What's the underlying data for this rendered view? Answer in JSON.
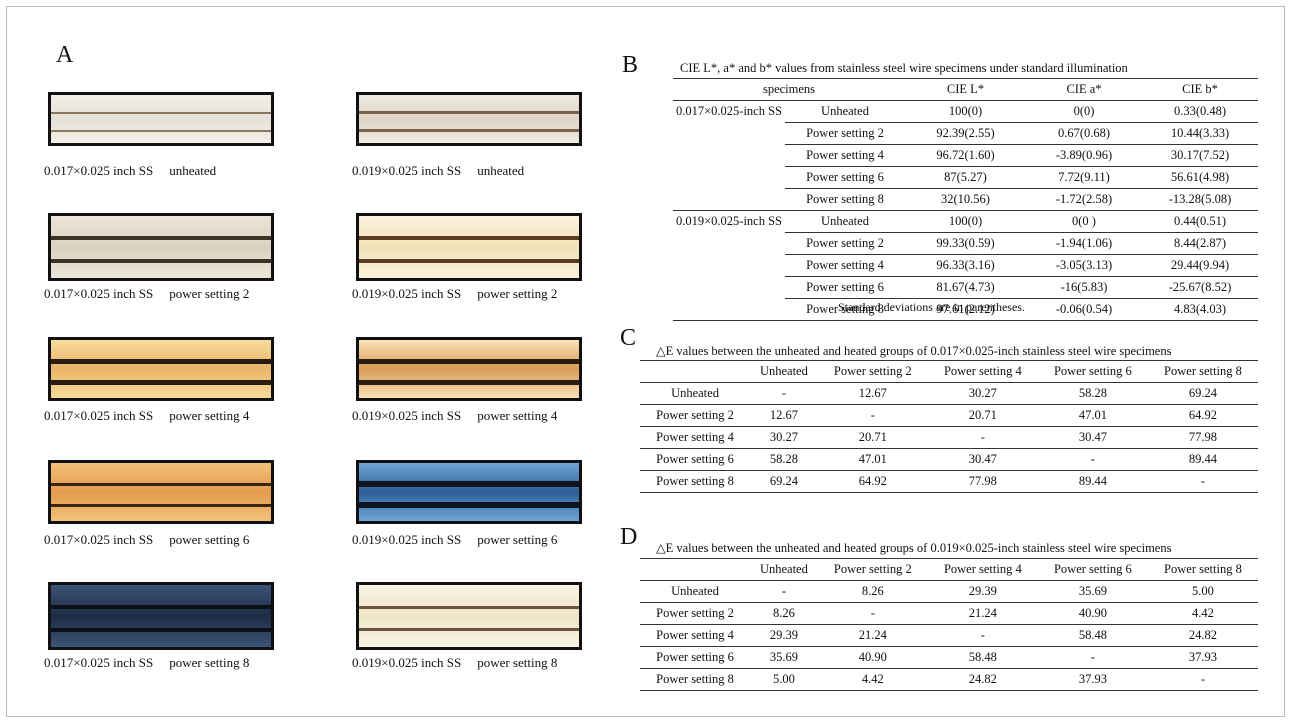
{
  "panel_a": {
    "label": "A",
    "images": [
      {
        "spec": "0.017×0.025 inch SS",
        "condition": "unheated"
      },
      {
        "spec": "0.019×0.025 inch SS",
        "condition": "unheated"
      },
      {
        "spec": "0.017×0.025 inch SS",
        "condition": "power setting 2"
      },
      {
        "spec": "0.019×0.025 inch SS",
        "condition": "power setting 2"
      },
      {
        "spec": "0.017×0.025 inch SS",
        "condition": "power setting 4"
      },
      {
        "spec": "0.019×0.025 inch SS",
        "condition": "power setting 4"
      },
      {
        "spec": "0.017×0.025 inch SS",
        "condition": "power setting 6"
      },
      {
        "spec": "0.019×0.025 inch SS",
        "condition": "power setting 6"
      },
      {
        "spec": "0.017×0.025 inch SS",
        "condition": "power setting 8"
      },
      {
        "spec": "0.019×0.025 inch SS",
        "condition": "power setting 8"
      }
    ]
  },
  "panel_b": {
    "label": "B",
    "title": "CIE L*, a* and b* values from stainless steel wire specimens under standard illumination",
    "header": [
      "specimens",
      "CIE L*",
      "CIE a*",
      "CIE b*"
    ],
    "groups": [
      {
        "name": "0.017×0.025-inch SS",
        "rows": [
          [
            "Unheated",
            "100(0)",
            "0(0)",
            "0.33(0.48)"
          ],
          [
            "Power setting 2",
            "92.39(2.55)",
            "0.67(0.68)",
            "10.44(3.33)"
          ],
          [
            "Power setting 4",
            "96.72(1.60)",
            "-3.89(0.96)",
            "30.17(7.52)"
          ],
          [
            "Power setting 6",
            "87(5.27)",
            "7.72(9.11)",
            "56.61(4.98)"
          ],
          [
            "Power setting 8",
            "32(10.56)",
            "-1.72(2.58)",
            "-13.28(5.08)"
          ]
        ]
      },
      {
        "name": "0.019×0.025-inch SS",
        "rows": [
          [
            "Unheated",
            "100(0)",
            "0(0 )",
            "0.44(0.51)"
          ],
          [
            "Power setting 2",
            "99.33(0.59)",
            "-1.94(1.06)",
            "8.44(2.87)"
          ],
          [
            "Power setting 4",
            "96.33(3.16)",
            "-3.05(3.13)",
            "29.44(9.94)"
          ],
          [
            "Power setting 6",
            "81.67(4.73)",
            "-16(5.83)",
            "-25.67(8.52)"
          ],
          [
            "Power setting 8",
            "97.61(2.12)",
            "-0.06(0.54)",
            "4.83(4.03)"
          ]
        ]
      }
    ],
    "note": "Standard deviations are in parentheses."
  },
  "panel_c": {
    "label": "C",
    "title": "△E values between the unheated and heated groups of 0.017×0.025-inch stainless steel wire specimens",
    "header": [
      "",
      "Unheated",
      "Power setting 2",
      "Power setting 4",
      "Power setting 6",
      "Power setting 8"
    ],
    "rows": [
      [
        "Unheated",
        "-",
        "12.67",
        "30.27",
        "58.28",
        "69.24"
      ],
      [
        "Power setting 2",
        "12.67",
        "-",
        "20.71",
        "47.01",
        "64.92"
      ],
      [
        "Power setting 4",
        "30.27",
        "20.71",
        "-",
        "30.47",
        "77.98"
      ],
      [
        "Power setting 6",
        "58.28",
        "47.01",
        "30.47",
        "-",
        "89.44"
      ],
      [
        "Power setting 8",
        "69.24",
        "64.92",
        "77.98",
        "89.44",
        "-"
      ]
    ]
  },
  "panel_d": {
    "label": "D",
    "title": "△E values between the unheated and heated groups of 0.019×0.025-inch stainless steel wire specimens",
    "header": [
      "",
      "Unheated",
      "Power setting 2",
      "Power setting 4",
      "Power setting 6",
      "Power setting 8"
    ],
    "rows": [
      [
        "Unheated",
        "-",
        "8.26",
        "29.39",
        "35.69",
        "5.00"
      ],
      [
        "Power setting 2",
        "8.26",
        "-",
        "21.24",
        "40.90",
        "4.42"
      ],
      [
        "Power setting 4",
        "29.39",
        "21.24",
        "-",
        "58.48",
        "24.82"
      ],
      [
        "Power setting 6",
        "35.69",
        "40.90",
        "58.48",
        "-",
        "37.93"
      ],
      [
        "Power setting 8",
        "5.00",
        "4.42",
        "24.82",
        "37.93",
        "-"
      ]
    ]
  }
}
